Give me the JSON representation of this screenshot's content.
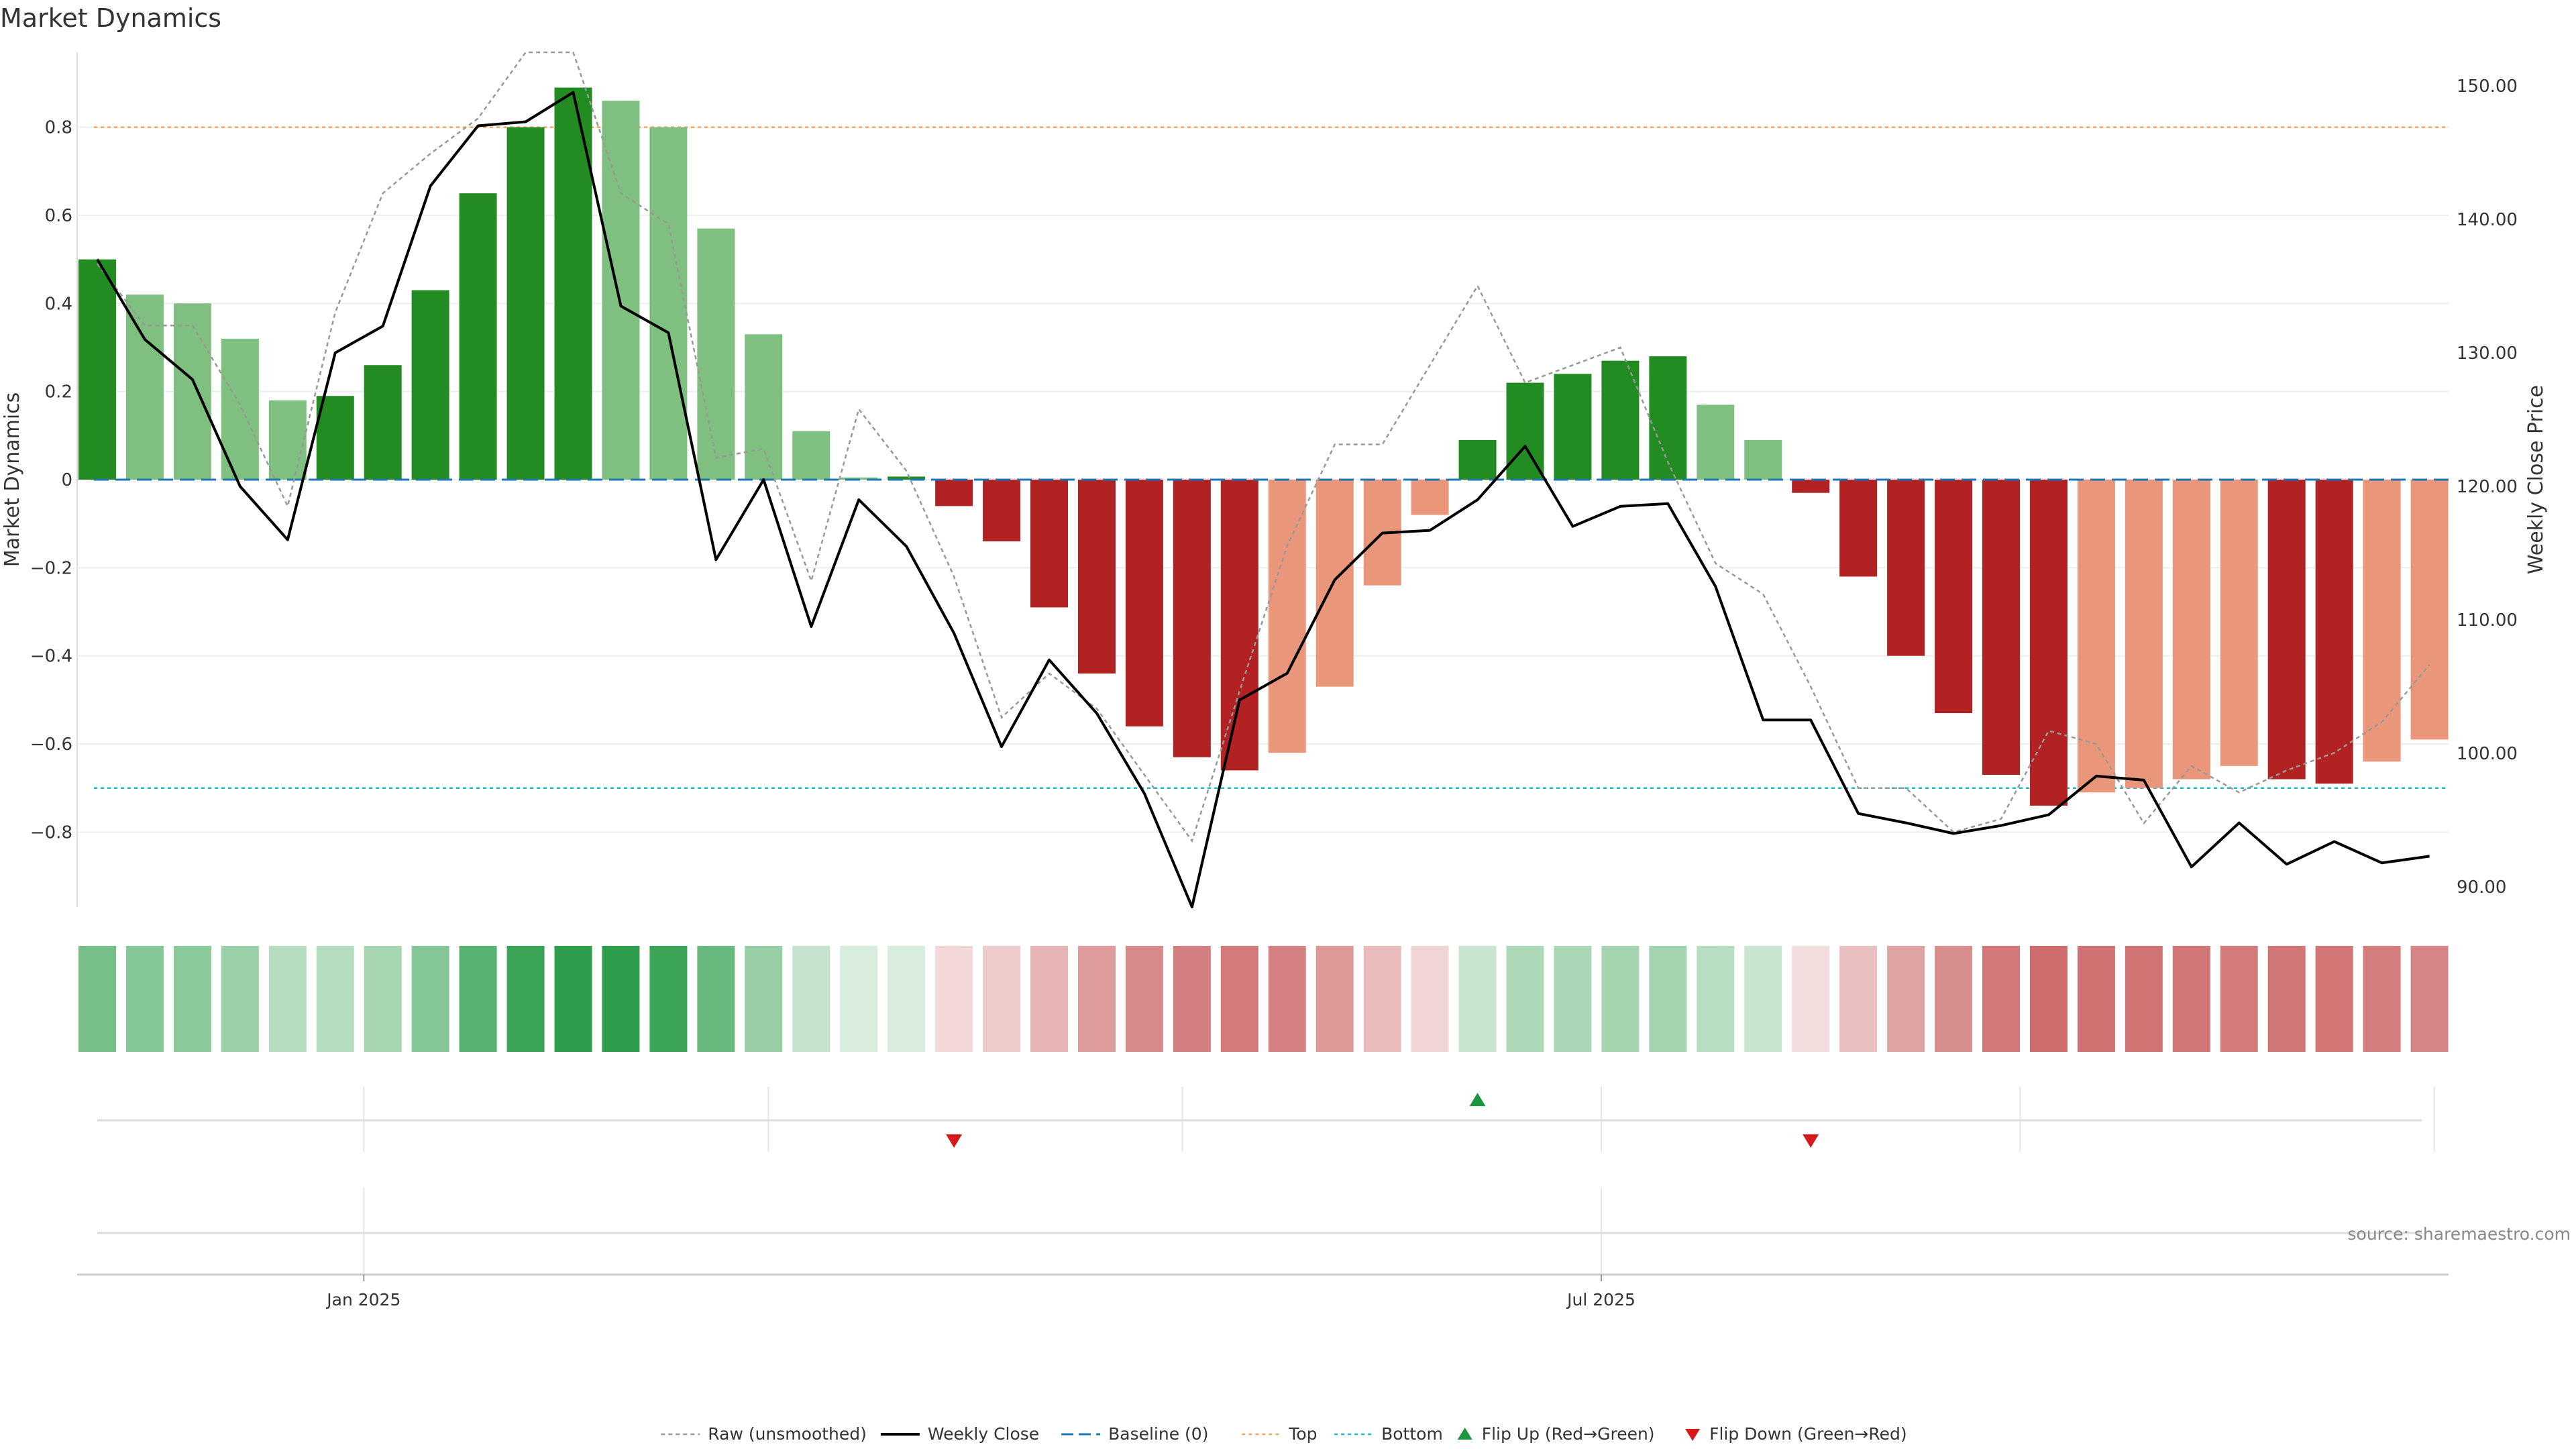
{
  "title": "Market Dynamics",
  "source_note": "source: sharemaestro.com",
  "chart_data": {
    "type": "bar",
    "weeks": 50,
    "left_axis": {
      "label": "Market Dynamics",
      "ylim": [
        -0.97,
        0.97
      ],
      "ticks": [
        -0.8,
        -0.6,
        -0.4,
        -0.2,
        0,
        0.2,
        0.4,
        0.6,
        0.8
      ],
      "tick_labels": [
        "−0.8",
        "−0.6",
        "−0.4",
        "−0.2",
        "0",
        "0.2",
        "0.4",
        "0.6",
        "0.8"
      ]
    },
    "right_axis": {
      "label": "Weekly Close Price",
      "ylim": [
        88.5,
        152.5
      ],
      "ticks": [
        90,
        100,
        110,
        120,
        130,
        140,
        150
      ],
      "tick_labels": [
        "90.00",
        "100.00",
        "110.00",
        "120.00",
        "130.00",
        "140.00",
        "150.00"
      ]
    },
    "x_axis": {
      "tick_labels": [
        "Jan 2025",
        "Jul 2025"
      ],
      "tick_weeks": [
        5.6,
        31.6
      ],
      "minor_grid_weeks": [
        5.6,
        14.1,
        22.8,
        31.6,
        40.4,
        49.1
      ]
    },
    "bars": [
      0.5,
      0.42,
      0.4,
      0.32,
      0.18,
      0.19,
      0.26,
      0.43,
      0.65,
      0.8,
      0.89,
      0.86,
      0.8,
      0.57,
      0.33,
      0.11,
      0.005,
      0.007,
      -0.06,
      -0.14,
      -0.29,
      -0.44,
      -0.56,
      -0.63,
      -0.66,
      -0.62,
      -0.47,
      -0.24,
      -0.08,
      0.09,
      0.22,
      0.24,
      0.27,
      0.28,
      0.17,
      0.09,
      -0.03,
      -0.22,
      -0.4,
      -0.53,
      -0.67,
      -0.74,
      -0.71,
      -0.7,
      -0.68,
      -0.65,
      -0.68,
      -0.69,
      -0.64,
      -0.59
    ],
    "bar_states": [
      "sg",
      "wg",
      "wg",
      "wg",
      "wg",
      "sg",
      "sg",
      "sg",
      "sg",
      "sg",
      "sg",
      "wg",
      "wg",
      "wg",
      "wg",
      "wg",
      "wg",
      "sg",
      "sr",
      "sr",
      "sr",
      "sr",
      "sr",
      "sr",
      "sr",
      "wr",
      "wr",
      "wr",
      "wr",
      "sg",
      "sg",
      "sg",
      "sg",
      "sg",
      "wg",
      "wg",
      "sr",
      "sr",
      "sr",
      "sr",
      "sr",
      "sr",
      "wr",
      "wr",
      "wr",
      "wr",
      "sr",
      "sr",
      "wr",
      "wr"
    ],
    "weekly_close": [
      137.0,
      131.0,
      128.0,
      120.0,
      116.0,
      130.0,
      132.0,
      142.5,
      147.0,
      147.3,
      149.5,
      133.5,
      131.5,
      114.5,
      120.5,
      109.5,
      119.0,
      115.5,
      109.0,
      100.5,
      107.0,
      103.0,
      97.0,
      88.5,
      104.0,
      106.0,
      113.0,
      116.5,
      116.7,
      119.0,
      123.0,
      117.0,
      118.5,
      118.7,
      112.5,
      102.5,
      102.5,
      95.5,
      94.8,
      94.0,
      94.6,
      95.4,
      98.3,
      98.0,
      91.5,
      94.8,
      91.7,
      93.4,
      91.8,
      92.3
    ],
    "raw_unsmoothed": [
      0.49,
      0.35,
      0.35,
      0.17,
      -0.06,
      0.38,
      0.65,
      0.74,
      0.82,
      0.97,
      0.97,
      0.65,
      0.58,
      0.05,
      0.07,
      -0.23,
      0.16,
      0.02,
      -0.22,
      -0.54,
      -0.44,
      -0.52,
      -0.67,
      -0.82,
      -0.48,
      -0.15,
      0.08,
      0.08,
      0.26,
      0.44,
      0.22,
      0.26,
      0.3,
      0.04,
      -0.19,
      -0.26,
      -0.47,
      -0.7,
      -0.7,
      -0.8,
      -0.77,
      -0.57,
      -0.6,
      -0.78,
      -0.65,
      -0.71,
      -0.66,
      -0.62,
      -0.55,
      -0.42
    ],
    "reference_lines": {
      "baseline": 0,
      "top": 0.8,
      "bottom": -0.7
    },
    "heat_strip": [
      0.5,
      0.42,
      0.4,
      0.32,
      0.18,
      0.19,
      0.26,
      0.43,
      0.65,
      0.8,
      0.89,
      0.86,
      0.8,
      0.57,
      0.33,
      0.11,
      0.005,
      0.007,
      -0.06,
      -0.14,
      -0.29,
      -0.44,
      -0.56,
      -0.63,
      -0.66,
      -0.62,
      -0.47,
      -0.24,
      -0.08,
      0.09,
      0.22,
      0.24,
      0.27,
      0.28,
      0.17,
      0.09,
      -0.03,
      -0.22,
      -0.4,
      -0.53,
      -0.67,
      -0.74,
      -0.71,
      -0.7,
      -0.68,
      -0.65,
      -0.68,
      -0.69,
      -0.64,
      -0.59
    ],
    "flips": [
      {
        "week": 18,
        "type": "down"
      },
      {
        "week": 29,
        "type": "up"
      },
      {
        "week": 36,
        "type": "down"
      }
    ],
    "legend": {
      "placement": "bottom-center",
      "items": [
        {
          "label": "Raw (unsmoothed)",
          "kind": "raw"
        },
        {
          "label": "Weekly Close",
          "kind": "close"
        },
        {
          "label": "Baseline (0)",
          "kind": "baseline"
        },
        {
          "label": "Top",
          "kind": "top"
        },
        {
          "label": "Bottom",
          "kind": "bottom"
        },
        {
          "label": "Flip Up (Red→Green)",
          "kind": "flipup"
        },
        {
          "label": "Flip Down (Green→Red)",
          "kind": "flipdown"
        }
      ]
    },
    "colors": {
      "strong_green": "#228b22",
      "weak_green": "#7fbf7f",
      "strong_red": "#b22222",
      "weak_red": "#e9967a",
      "close_line": "#000000",
      "raw_line": "#999999",
      "baseline": "#1f77b4",
      "top": "#f4a460",
      "bottom": "#17becf",
      "flip_up": "#1a9641",
      "flip_down": "#d7191c"
    }
  }
}
